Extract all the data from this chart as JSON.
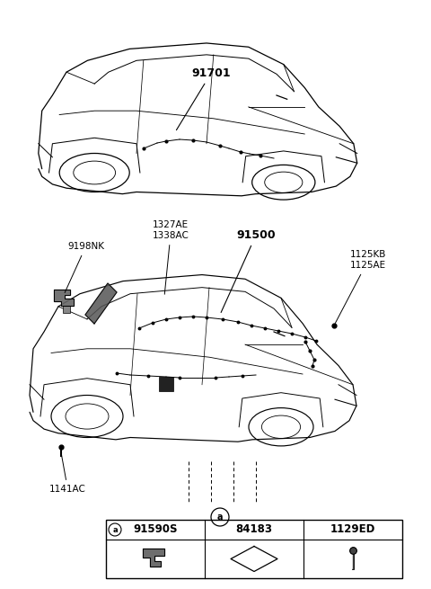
{
  "bg_color": "#ffffff",
  "line_color": "#000000",
  "labels": {
    "top_car": "91701",
    "bottom_car": "91500",
    "part1": "1327AE\n1338AC",
    "part2": "9198NK",
    "part3": "1141AC",
    "part4": "1125KB\n1125AE"
  },
  "table_headers": [
    "91590S",
    "84183",
    "1129ED"
  ],
  "circle_label": "a"
}
